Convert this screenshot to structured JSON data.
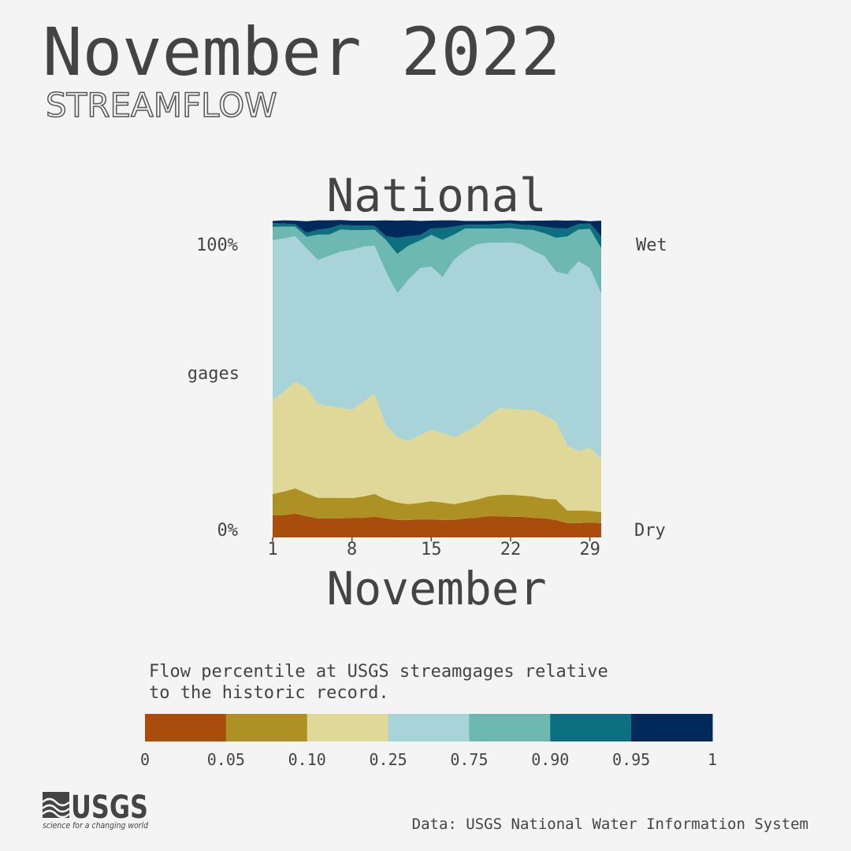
{
  "chart_data": {
    "type": "stacked_area",
    "title": "November 2022",
    "subtitle": "STREAMFLOW",
    "chart_title": "National",
    "x_label": "November",
    "y_label_top": "100%",
    "y_label_middle": "gages",
    "y_label_bottom": "0%",
    "right_label_top": "Wet",
    "right_label_bottom": "Dry",
    "x": [
      1,
      2,
      3,
      4,
      5,
      6,
      7,
      8,
      9,
      10,
      11,
      12,
      13,
      14,
      15,
      16,
      17,
      18,
      19,
      20,
      21,
      22,
      23,
      24,
      25,
      26,
      27,
      28,
      29,
      30
    ],
    "xlim": [
      1,
      30
    ],
    "xticks": [
      1,
      8,
      15,
      22,
      29
    ],
    "ylim": [
      0,
      100
    ],
    "series": [
      {
        "color": "#a84d0c",
        "values": [
          7.0,
          7.0,
          7.5,
          6.7,
          6.0,
          6.0,
          6.0,
          6.2,
          6.2,
          6.5,
          6.0,
          5.5,
          5.5,
          5.7,
          5.7,
          5.5,
          5.5,
          6.0,
          6.2,
          6.7,
          6.7,
          6.5,
          6.5,
          6.2,
          6.0,
          5.5,
          4.5,
          4.5,
          4.7,
          4.5
        ]
      },
      {
        "color": "#ae9124",
        "values": [
          6.7,
          7.5,
          8.0,
          7.2,
          6.5,
          6.5,
          6.5,
          6.2,
          6.7,
          7.2,
          6.0,
          5.5,
          5.0,
          5.2,
          5.7,
          5.5,
          5.0,
          5.2,
          5.7,
          6.2,
          6.7,
          7.0,
          6.7,
          6.7,
          6.2,
          6.5,
          4.0,
          4.0,
          3.7,
          3.5
        ]
      },
      {
        "color": "#e0d898",
        "values": [
          29.6,
          31.6,
          33.6,
          33.3,
          29.6,
          28.9,
          28.4,
          27.9,
          29.9,
          31.6,
          23.4,
          20.6,
          19.9,
          21.4,
          22.6,
          21.9,
          21.1,
          22.1,
          23.4,
          25.4,
          27.4,
          27.1,
          27.1,
          27.4,
          26.4,
          24.6,
          20.6,
          18.7,
          19.9,
          16.9
        ]
      },
      {
        "color": "#a8d3d8",
        "values": [
          50.5,
          48.3,
          46.0,
          44.0,
          45.5,
          47.5,
          49.3,
          50.5,
          49.0,
          46.8,
          48.5,
          45.5,
          51.0,
          52.7,
          51.5,
          49.3,
          56.0,
          57.2,
          57.2,
          54.7,
          52.2,
          52.5,
          52.2,
          50.2,
          50.2,
          47.3,
          54.0,
          60.0,
          56.7,
          52.2
        ]
      },
      {
        "color": "#6db8b0",
        "values": [
          4.2,
          3.7,
          3.0,
          3.7,
          8.0,
          6.7,
          7.0,
          6.2,
          5.2,
          5.0,
          10.0,
          12.4,
          10.7,
          8.7,
          10.0,
          11.7,
          8.0,
          7.0,
          5.0,
          4.5,
          4.5,
          4.5,
          4.7,
          6.5,
          7.2,
          10.7,
          11.9,
          10.0,
          12.4,
          14.2
        ]
      },
      {
        "color": "#0d7080",
        "values": [
          1.2,
          1.0,
          0.7,
          1.2,
          1.5,
          2.0,
          1.5,
          1.5,
          1.5,
          1.2,
          1.2,
          5.0,
          3.0,
          1.7,
          2.0,
          3.7,
          2.5,
          1.2,
          1.2,
          1.2,
          1.5,
          1.5,
          1.5,
          1.5,
          2.0,
          3.0,
          2.5,
          1.7,
          1.7,
          3.7
        ]
      },
      {
        "color": "#002a5c",
        "values": [
          0.7,
          1.0,
          1.2,
          3.7,
          3.0,
          2.5,
          1.5,
          1.5,
          1.5,
          1.7,
          5.0,
          5.5,
          5.0,
          4.5,
          2.5,
          2.5,
          2.0,
          1.2,
          1.2,
          1.2,
          1.0,
          1.0,
          1.2,
          1.5,
          2.0,
          2.5,
          2.5,
          1.2,
          0.7,
          5.0
        ]
      }
    ],
    "legend_title": [
      "Flow percentile at USGS streamgages relative",
      "to the historic record."
    ],
    "legend_ticks": [
      0,
      0.05,
      {
        "value": 0.1,
        "label": "0.10"
      },
      0.25,
      0.75,
      {
        "value": 0.9,
        "label": "0.90"
      },
      0.95,
      1
    ],
    "source": "Data: USGS National Water Information System",
    "logo": "USGS",
    "logo_tagline": "science for a changing world"
  }
}
